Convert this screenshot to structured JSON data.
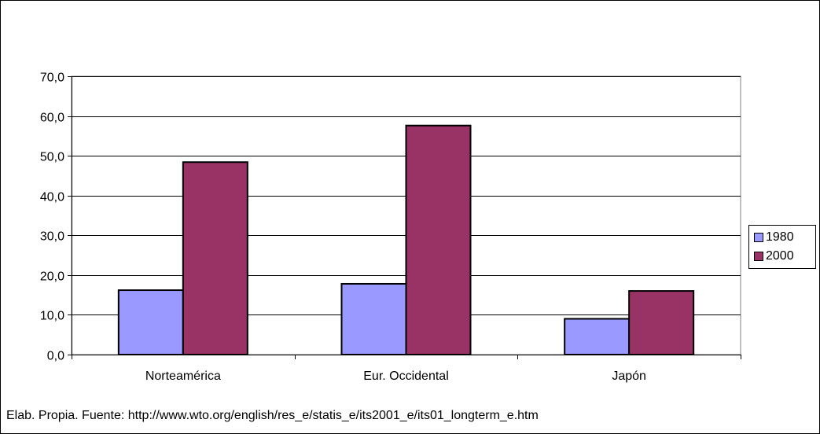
{
  "chart_data": {
    "type": "bar",
    "categories": [
      "Norteamérica",
      "Eur. Occidental",
      "Japón"
    ],
    "series": [
      {
        "name": "1980",
        "values": [
          16.2,
          17.8,
          9.0
        ],
        "color": "#9999ff"
      },
      {
        "name": "2000",
        "values": [
          48.4,
          57.6,
          16.0
        ],
        "color": "#993366"
      }
    ],
    "ylim": [
      0,
      70
    ],
    "yticks": [
      "0,0",
      "10,0",
      "20,0",
      "30,0",
      "40,0",
      "50,0",
      "60,0",
      "70,0"
    ],
    "grid": true,
    "legend_placement": "right",
    "plot_background": "#ffffff",
    "gridline_color": "#000000"
  },
  "footer": {
    "source_note": "Elab. Propia.  Fuente: http://www.wto.org/english/res_e/statis_e/its2001_e/its01_longterm_e.htm"
  }
}
